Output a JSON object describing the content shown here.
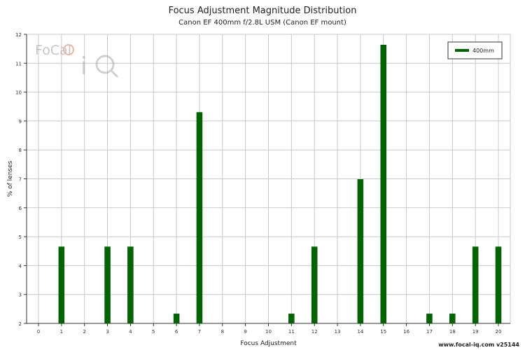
{
  "header": {
    "title": "Focus Adjustment Magnitude Distribution",
    "subtitle": "Canon EF 400mm f/2.8L USM (Canon EF mount)"
  },
  "footer": {
    "text": "www.focal-iq.com  v25144"
  },
  "logo": {
    "text": "FoCal",
    "mark": "iQ"
  },
  "colors": {
    "bar": "#006400",
    "grid": "#c8c8c8",
    "axis": "#333333"
  },
  "chart_data": {
    "type": "bar",
    "xlabel": "Focus Adjustment",
    "ylabel": "% of lenses",
    "xlim": [
      0,
      20
    ],
    "ylim": [
      2,
      12
    ],
    "x_ticks": [
      0,
      1,
      2,
      3,
      4,
      5,
      6,
      7,
      8,
      9,
      10,
      11,
      12,
      13,
      14,
      15,
      16,
      17,
      18,
      19,
      20
    ],
    "y_ticks": [
      2,
      3,
      4,
      5,
      6,
      7,
      8,
      9,
      10,
      11,
      12
    ],
    "grid": true,
    "legend_position": "top-right",
    "series": [
      {
        "name": "400mm",
        "points": [
          {
            "x": 1,
            "y": 4.65
          },
          {
            "x": 3,
            "y": 4.65
          },
          {
            "x": 4,
            "y": 4.65
          },
          {
            "x": 6,
            "y": 2.33
          },
          {
            "x": 7,
            "y": 9.3
          },
          {
            "x": 11,
            "y": 2.33
          },
          {
            "x": 12,
            "y": 4.65
          },
          {
            "x": 14,
            "y": 6.98
          },
          {
            "x": 15,
            "y": 11.63
          },
          {
            "x": 17,
            "y": 2.33
          },
          {
            "x": 18,
            "y": 2.33
          },
          {
            "x": 19,
            "y": 4.65
          },
          {
            "x": 20,
            "y": 4.65
          }
        ]
      }
    ]
  }
}
